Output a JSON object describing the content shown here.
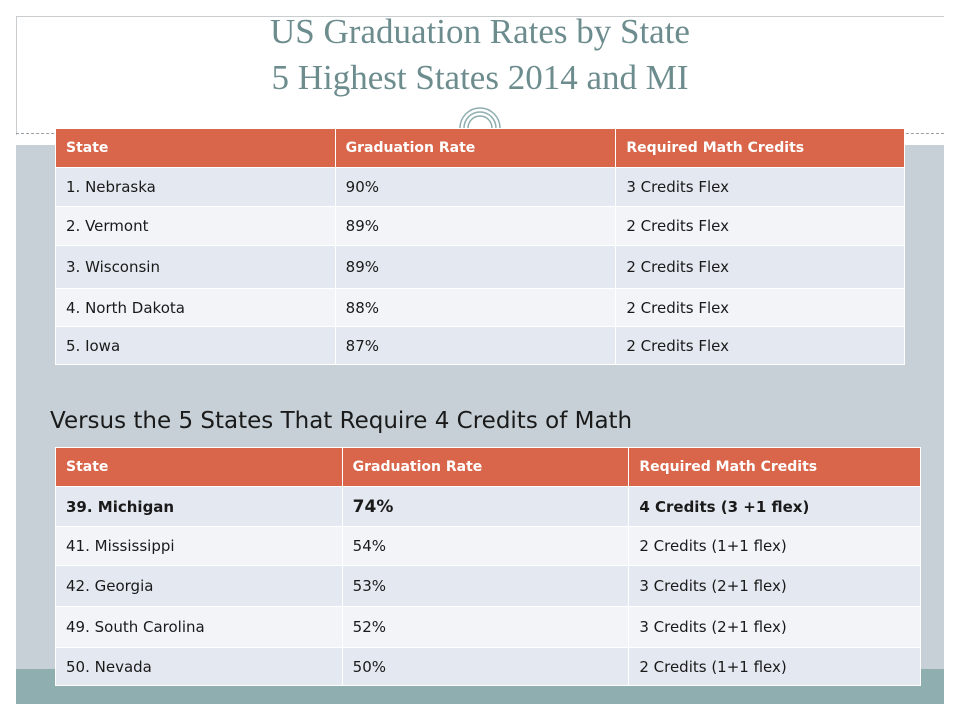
{
  "title": {
    "line1": "US Graduation Rates by State",
    "line2": "5 Highest States 2014 and MI"
  },
  "table_top": {
    "headers": [
      "State",
      "Graduation Rate",
      "Required Math Credits"
    ],
    "rows": [
      [
        "1. Nebraska",
        "90%",
        "3 Credits Flex"
      ],
      [
        "2. Vermont",
        "89%",
        "2 Credits Flex"
      ],
      [
        "3. Wisconsin",
        "89%",
        "2 Credits Flex"
      ],
      [
        "4. North Dakota",
        "88%",
        "2 Credits Flex"
      ],
      [
        "5. Iowa",
        "87%",
        "2 Credits Flex"
      ]
    ]
  },
  "subheading": "Versus the 5 States That Require 4 Credits of Math",
  "table_bottom": {
    "headers": [
      "State",
      "Graduation Rate",
      "Required Math Credits"
    ],
    "rows": [
      [
        "39. Michigan",
        "74%",
        "4 Credits (3 +1 flex)"
      ],
      [
        "41. Mississippi",
        "54%",
        "2 Credits (1+1 flex)"
      ],
      [
        "42. Georgia",
        "53%",
        "3 Credits (2+1 flex)"
      ],
      [
        "49. South Carolina",
        "52%",
        "3 Credits (2+1 flex)"
      ],
      [
        "50. Nevada",
        "50%",
        "2 Credits (1+1 flex)"
      ]
    ]
  },
  "colors": {
    "header_fill": "#d9664a",
    "title_color": "#6d8c8e",
    "band": "#c6d0d6",
    "bottom_band": "#8faeb0"
  }
}
